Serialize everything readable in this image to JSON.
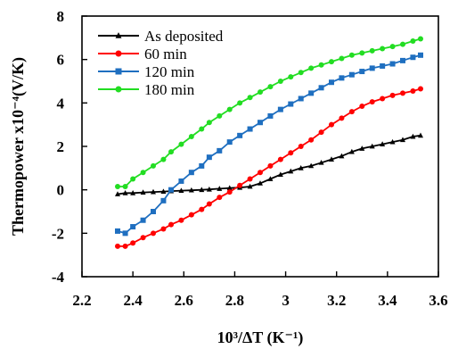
{
  "chart_data": {
    "type": "line",
    "title": "",
    "xlabel": "10³/ΔT (K⁻¹)",
    "ylabel": "Thermopower x10⁻⁴(V/K)",
    "xlim": [
      2.2,
      3.6
    ],
    "ylim": [
      -4,
      8
    ],
    "xticks": [
      "2.2",
      "2.4",
      "2.6",
      "2.8",
      "3",
      "3.2",
      "3.4",
      "3.6"
    ],
    "yticks": [
      "-4",
      "-2",
      "0",
      "2",
      "4",
      "6",
      "8"
    ],
    "grid": false,
    "legend_position": "top-left",
    "series": [
      {
        "name": "As deposited",
        "color": "#000000",
        "marker": "triangle",
        "x": [
          2.34,
          2.37,
          2.4,
          2.44,
          2.48,
          2.52,
          2.55,
          2.59,
          2.63,
          2.67,
          2.7,
          2.74,
          2.78,
          2.82,
          2.86,
          2.9,
          2.94,
          2.98,
          3.02,
          3.06,
          3.1,
          3.14,
          3.18,
          3.22,
          3.26,
          3.3,
          3.34,
          3.38,
          3.42,
          3.46,
          3.5,
          3.53
        ],
        "y": [
          -0.2,
          -0.15,
          -0.15,
          -0.12,
          -0.1,
          -0.08,
          -0.06,
          -0.04,
          -0.02,
          0.0,
          0.02,
          0.05,
          0.08,
          0.1,
          0.15,
          0.3,
          0.5,
          0.7,
          0.85,
          1.0,
          1.1,
          1.25,
          1.4,
          1.55,
          1.75,
          1.9,
          2.0,
          2.1,
          2.2,
          2.3,
          2.45,
          2.5
        ]
      },
      {
        "name": "60 min",
        "color": "#ff0000",
        "marker": "circle",
        "x": [
          2.34,
          2.37,
          2.4,
          2.44,
          2.48,
          2.52,
          2.55,
          2.59,
          2.63,
          2.67,
          2.7,
          2.74,
          2.78,
          2.82,
          2.86,
          2.9,
          2.94,
          2.98,
          3.02,
          3.06,
          3.1,
          3.14,
          3.18,
          3.22,
          3.26,
          3.3,
          3.34,
          3.38,
          3.42,
          3.46,
          3.5,
          3.53
        ],
        "y": [
          -2.6,
          -2.6,
          -2.45,
          -2.2,
          -2.0,
          -1.8,
          -1.6,
          -1.4,
          -1.15,
          -0.9,
          -0.65,
          -0.35,
          -0.1,
          0.2,
          0.5,
          0.8,
          1.1,
          1.4,
          1.7,
          2.0,
          2.3,
          2.65,
          3.0,
          3.3,
          3.6,
          3.85,
          4.05,
          4.2,
          4.35,
          4.45,
          4.55,
          4.65
        ]
      },
      {
        "name": "120 min",
        "color": "#1f6fc0",
        "marker": "square",
        "x": [
          2.34,
          2.37,
          2.4,
          2.44,
          2.48,
          2.52,
          2.55,
          2.59,
          2.63,
          2.67,
          2.7,
          2.74,
          2.78,
          2.82,
          2.86,
          2.9,
          2.94,
          2.98,
          3.02,
          3.06,
          3.1,
          3.14,
          3.18,
          3.22,
          3.26,
          3.3,
          3.34,
          3.38,
          3.42,
          3.46,
          3.5,
          3.53
        ],
        "y": [
          -1.9,
          -2.0,
          -1.7,
          -1.4,
          -1.0,
          -0.5,
          0.0,
          0.4,
          0.8,
          1.1,
          1.5,
          1.8,
          2.2,
          2.5,
          2.8,
          3.1,
          3.4,
          3.7,
          3.95,
          4.2,
          4.45,
          4.7,
          4.95,
          5.15,
          5.3,
          5.45,
          5.6,
          5.7,
          5.8,
          5.95,
          6.1,
          6.2
        ]
      },
      {
        "name": "180 min",
        "color": "#22dd22",
        "marker": "circle",
        "x": [
          2.34,
          2.37,
          2.4,
          2.44,
          2.48,
          2.52,
          2.55,
          2.59,
          2.63,
          2.67,
          2.7,
          2.74,
          2.78,
          2.82,
          2.86,
          2.9,
          2.94,
          2.98,
          3.02,
          3.06,
          3.1,
          3.14,
          3.18,
          3.22,
          3.26,
          3.3,
          3.34,
          3.38,
          3.42,
          3.46,
          3.5,
          3.53
        ],
        "y": [
          0.15,
          0.15,
          0.5,
          0.8,
          1.1,
          1.4,
          1.75,
          2.1,
          2.45,
          2.8,
          3.1,
          3.4,
          3.7,
          4.0,
          4.25,
          4.5,
          4.75,
          5.0,
          5.2,
          5.4,
          5.6,
          5.75,
          5.9,
          6.05,
          6.2,
          6.3,
          6.4,
          6.5,
          6.6,
          6.7,
          6.85,
          6.95
        ]
      }
    ]
  }
}
